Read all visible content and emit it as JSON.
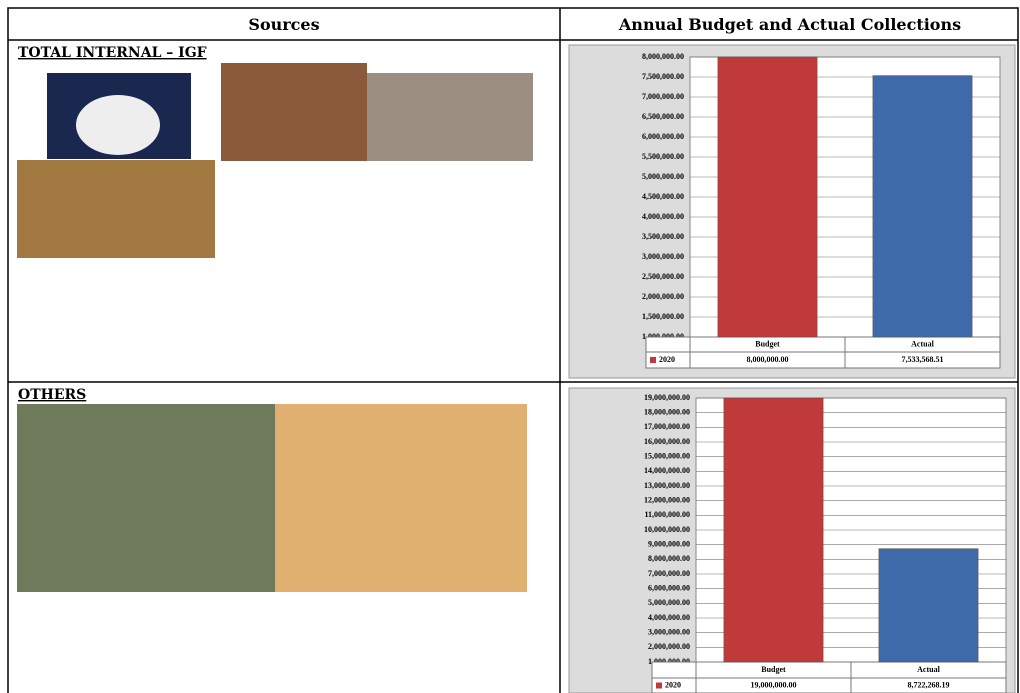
{
  "header": {
    "sources": "Sources",
    "collections": "Annual Budget and Actual Collections"
  },
  "rows": [
    {
      "label": "TOTAL INTERNAL – IGF"
    },
    {
      "label": "OTHERS"
    }
  ],
  "chart_data": [
    {
      "type": "bar",
      "categories": [
        "Budget",
        "Actual"
      ],
      "series": [
        {
          "name": "2020",
          "color": "#c0393b",
          "colors": [
            "#c0393b",
            "#3f6aa9"
          ],
          "values": [
            8000000,
            7533568.51
          ],
          "value_labels": [
            "8,000,000.00",
            "7,533,568.51"
          ]
        }
      ],
      "ylim": [
        1000000,
        8000000
      ],
      "yticks": [
        {
          "value": 1000000,
          "label": "1,000,000.00"
        },
        {
          "value": 1500000,
          "label": "1,500,000.00"
        },
        {
          "value": 2000000,
          "label": "2,000,000.00"
        },
        {
          "value": 2500000,
          "label": "2,500,000.00"
        },
        {
          "value": 3000000,
          "label": "3,000,000.00"
        },
        {
          "value": 3500000,
          "label": "3,500,000.00"
        },
        {
          "value": 4000000,
          "label": "4,000,000.00"
        },
        {
          "value": 4500000,
          "label": "4,500,000.00"
        },
        {
          "value": 5000000,
          "label": "5,000,000.00"
        },
        {
          "value": 5500000,
          "label": "5,500,000.00"
        },
        {
          "value": 6000000,
          "label": "6,000,000.00"
        },
        {
          "value": 6500000,
          "label": "6,500,000.00"
        },
        {
          "value": 7000000,
          "label": "7,000,000.00"
        },
        {
          "value": 7500000,
          "label": "7,500,000.00"
        },
        {
          "value": 8000000,
          "label": "8,000,000.00"
        }
      ],
      "grid": true
    },
    {
      "type": "bar",
      "categories": [
        "Budget",
        "Actual"
      ],
      "series": [
        {
          "name": "2020",
          "color": "#c0393b",
          "colors": [
            "#c0393b",
            "#3f6aa9"
          ],
          "values": [
            19000000,
            8722268.19
          ],
          "value_labels": [
            "19,000,000.00",
            "8,722,268.19"
          ]
        }
      ],
      "ylim": [
        1000000,
        19000000
      ],
      "yticks": [
        {
          "value": 1000000,
          "label": "1,000,000.00"
        },
        {
          "value": 2000000,
          "label": "2,000,000.00"
        },
        {
          "value": 3000000,
          "label": "3,000,000.00"
        },
        {
          "value": 4000000,
          "label": "4,000,000.00"
        },
        {
          "value": 5000000,
          "label": "5,000,000.00"
        },
        {
          "value": 6000000,
          "label": "6,000,000.00"
        },
        {
          "value": 7000000,
          "label": "7,000,000.00"
        },
        {
          "value": 8000000,
          "label": "8,000,000.00"
        },
        {
          "value": 9000000,
          "label": "9,000,000.00"
        },
        {
          "value": 10000000,
          "label": "10,000,000.00"
        },
        {
          "value": 11000000,
          "label": "11,000,000.00"
        },
        {
          "value": 12000000,
          "label": "12,000,000.00"
        },
        {
          "value": 13000000,
          "label": "13,000,000.00"
        },
        {
          "value": 14000000,
          "label": "14,000,000.00"
        },
        {
          "value": 15000000,
          "label": "15,000,000.00"
        },
        {
          "value": 16000000,
          "label": "16,000,000.00"
        },
        {
          "value": 17000000,
          "label": "17,000,000.00"
        },
        {
          "value": 18000000,
          "label": "18,000,000.00"
        },
        {
          "value": 19000000,
          "label": "19,000,000.00"
        }
      ],
      "grid": true
    }
  ]
}
